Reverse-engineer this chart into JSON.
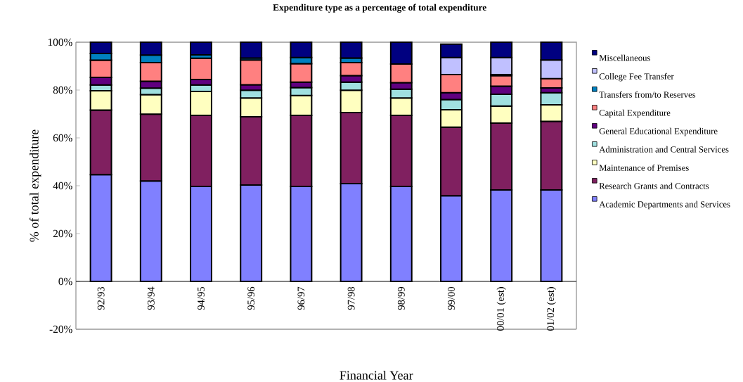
{
  "chart_data": {
    "type": "bar",
    "stacked": true,
    "title": "Expenditure type as a percentage of  total expenditure",
    "xlabel": "Financial Year",
    "ylabel": "% of total expenditure",
    "categories": [
      "92/93",
      "93/94",
      "94/95",
      "95/96",
      "96/97",
      "97/98",
      "98/99",
      "99/00",
      "00/01 (est)",
      "01/02 (est)"
    ],
    "ylim": [
      -20,
      100
    ],
    "yticks": [
      {
        "value": -20,
        "label": "-20%"
      },
      {
        "value": 0,
        "label": "0%"
      },
      {
        "value": 20,
        "label": "20%"
      },
      {
        "value": 40,
        "label": "40%"
      },
      {
        "value": 60,
        "label": "60%"
      },
      {
        "value": 80,
        "label": "80%"
      },
      {
        "value": 100,
        "label": "100%"
      }
    ],
    "legend": "right",
    "series": [
      {
        "name": "Academic Departments and Services",
        "color": "#8080ff",
        "values": [
          44.6,
          42.0,
          39.7,
          40.3,
          39.7,
          40.9,
          39.7,
          35.8,
          38.2,
          38.2
        ]
      },
      {
        "name": "Research Grants and Contracts",
        "color": "#802060",
        "values": [
          27.0,
          27.9,
          29.7,
          28.5,
          29.7,
          29.7,
          29.7,
          28.7,
          28.0,
          28.7
        ]
      },
      {
        "name": "Maintenance of Premises",
        "color": "#ffffc0",
        "values": [
          8.1,
          8.2,
          10.0,
          7.9,
          8.3,
          9.3,
          7.3,
          7.3,
          7.1,
          6.9
        ]
      },
      {
        "name": "Administration and Central Services",
        "color": "#a0e0e0",
        "values": [
          2.4,
          2.7,
          2.7,
          3.2,
          3.3,
          3.4,
          3.7,
          4.2,
          4.9,
          5.1
        ]
      },
      {
        "name": "General Educational Expenditure",
        "color": "#600080",
        "values": [
          3.2,
          2.9,
          2.3,
          2.3,
          2.3,
          2.7,
          2.7,
          2.9,
          3.4,
          2.0
        ]
      },
      {
        "name": "Capital Expenditure",
        "color": "#ff8080",
        "values": [
          7.2,
          7.8,
          8.9,
          10.4,
          7.7,
          5.5,
          7.8,
          7.6,
          4.4,
          3.9
        ]
      },
      {
        "name": "Transfers from/to Reserves",
        "color": "#0080c0",
        "values": [
          2.8,
          3.1,
          1.4,
          0.8,
          2.6,
          1.9,
          null,
          null,
          0.5,
          null
        ]
      },
      {
        "name": "College Fee Transfer",
        "color": "#c0c0ff",
        "values": [
          null,
          null,
          null,
          null,
          null,
          null,
          null,
          7.1,
          7.1,
          7.8
        ]
      },
      {
        "name": "Miscellaneous",
        "color": "#000080",
        "values": [
          4.7,
          5.4,
          5.3,
          6.6,
          6.4,
          6.6,
          9.1,
          5.6,
          6.4,
          7.4
        ]
      }
    ]
  }
}
